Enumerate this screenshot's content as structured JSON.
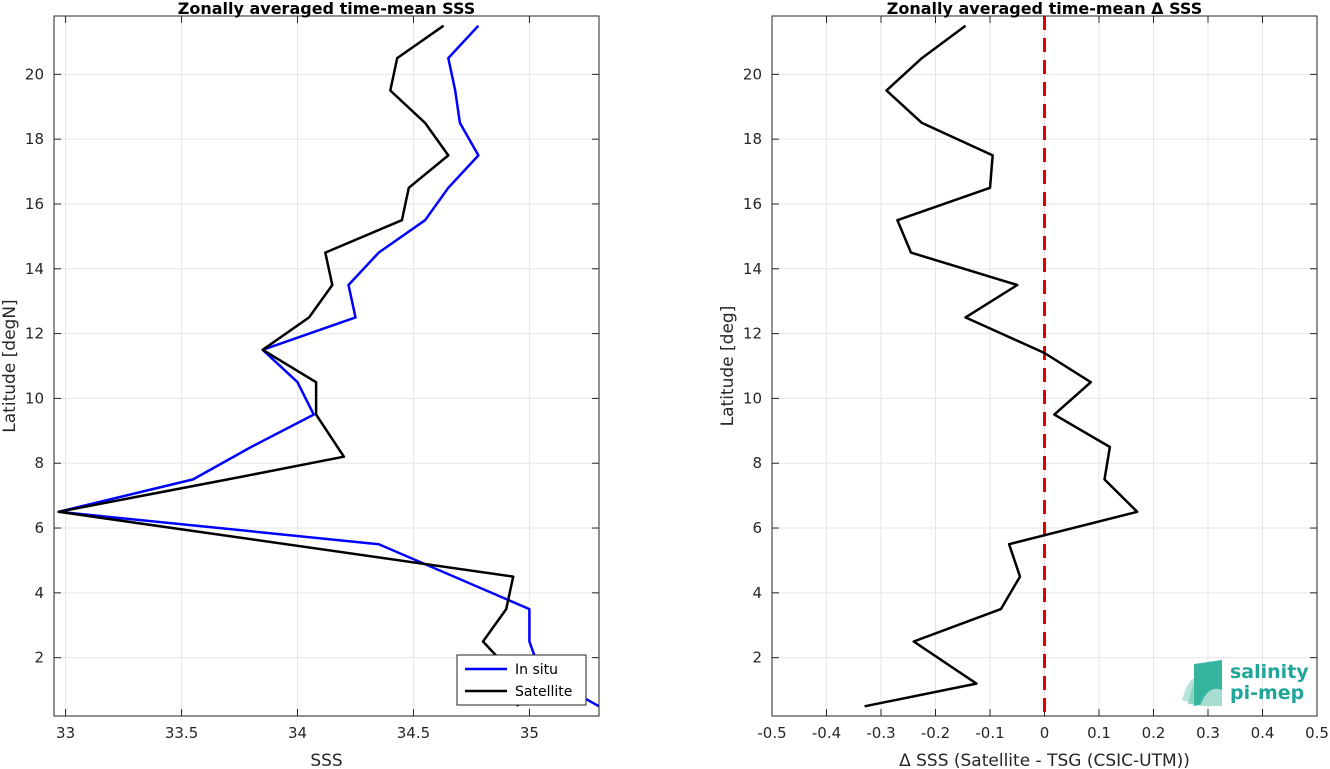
{
  "chart_data": [
    {
      "type": "line",
      "title": "Zonally averaged time-mean SSS",
      "xlabel": "SSS",
      "ylabel": "Latitude [degN]",
      "xlim": [
        32.95,
        35.3
      ],
      "ylim": [
        0.2,
        21.8
      ],
      "xticks": [
        "33",
        "33.5",
        "34",
        "34.5",
        "35"
      ],
      "yticks": [
        "2",
        "4",
        "6",
        "8",
        "10",
        "12",
        "14",
        "16",
        "18",
        "20"
      ],
      "grid": true,
      "legend": "bottom-right",
      "series": [
        {
          "name": "In situ",
          "color": "#0000ff",
          "x": [
            35.3,
            35.05,
            35.0,
            35.0,
            34.35,
            32.97,
            33.55,
            33.8,
            34.07,
            34.0,
            33.85,
            34.25,
            34.22,
            34.35,
            34.55,
            34.65,
            34.78,
            34.7,
            34.68,
            34.65,
            34.78
          ],
          "y": [
            0.5,
            1.5,
            2.5,
            3.5,
            5.5,
            6.5,
            7.5,
            8.5,
            9.5,
            10.5,
            11.5,
            12.5,
            13.5,
            14.5,
            15.5,
            16.5,
            17.5,
            18.5,
            19.5,
            20.5,
            21.5
          ]
        },
        {
          "name": "Satellite",
          "color": "#000000",
          "x": [
            34.95,
            34.93,
            34.8,
            34.9,
            34.93,
            32.97,
            33.7,
            34.2,
            34.08,
            34.08,
            33.85,
            34.05,
            34.15,
            34.12,
            34.45,
            34.48,
            34.65,
            34.55,
            34.4,
            34.43,
            34.63
          ],
          "y": [
            0.5,
            1.5,
            2.5,
            3.5,
            4.5,
            6.5,
            7.5,
            8.2,
            9.5,
            10.5,
            11.5,
            12.5,
            13.5,
            14.5,
            15.5,
            16.5,
            17.5,
            18.5,
            19.5,
            20.5,
            21.5
          ]
        }
      ]
    },
    {
      "type": "line",
      "title": "Zonally averaged time-mean Δ SSS",
      "xlabel": "Δ SSS (Satellite - TSG (CSIC-UTM))",
      "ylabel": "Latitude [deg]",
      "xlim": [
        -0.5,
        0.5
      ],
      "ylim": [
        0.2,
        21.8
      ],
      "xticks": [
        "-0.5",
        "-0.4",
        "-0.3",
        "-0.2",
        "-0.1",
        "0",
        "0.1",
        "0.2",
        "0.3",
        "0.4",
        "0.5"
      ],
      "yticks": [
        "2",
        "4",
        "6",
        "8",
        "10",
        "12",
        "14",
        "16",
        "18",
        "20"
      ],
      "grid": true,
      "reference_line": {
        "x": 0,
        "color": "#e00000",
        "style": "dashed"
      },
      "series": [
        {
          "color": "#000000",
          "x": [
            -0.33,
            -0.125,
            -0.24,
            -0.08,
            -0.045,
            -0.065,
            0.17,
            0.11,
            0.12,
            0.018,
            0.085,
            0.0,
            -0.145,
            -0.05,
            -0.245,
            -0.27,
            -0.1,
            -0.095,
            -0.225,
            -0.29,
            -0.225,
            -0.145
          ],
          "y": [
            0.5,
            1.2,
            2.5,
            3.5,
            4.5,
            5.5,
            6.5,
            7.5,
            8.5,
            9.5,
            10.5,
            11.4,
            12.5,
            13.5,
            14.5,
            15.5,
            16.5,
            17.5,
            18.5,
            19.5,
            20.5,
            21.5
          ]
        }
      ]
    }
  ],
  "logo": {
    "line1": "salinity",
    "line2": "pi-mep"
  }
}
